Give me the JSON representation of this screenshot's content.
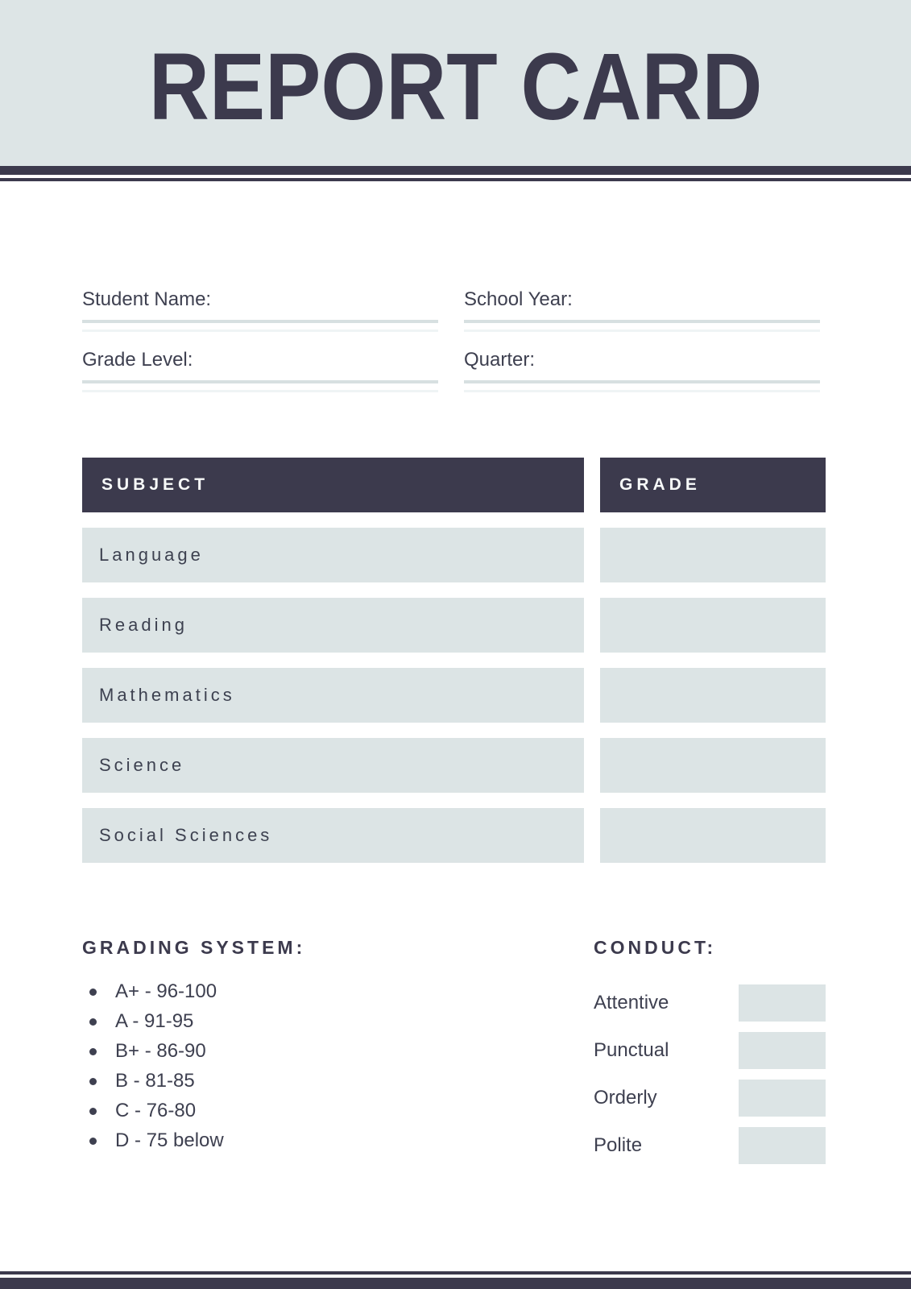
{
  "page": {
    "title": "REPORT CARD"
  },
  "colors": {
    "dark_navy": "#3c3a4d",
    "header_background": "#dde5e6",
    "cell_background": "#dce4e5",
    "underline": "#d7e0e1"
  },
  "fields": [
    {
      "label": "Student Name:",
      "value": ""
    },
    {
      "label": "School Year:",
      "value": ""
    },
    {
      "label": "Grade Level:",
      "value": ""
    },
    {
      "label": "Quarter:",
      "value": ""
    }
  ],
  "table": {
    "subject_header": "SUBJECT",
    "grade_header": "GRADE",
    "rows": [
      {
        "subject": "Language",
        "grade": ""
      },
      {
        "subject": "Reading",
        "grade": ""
      },
      {
        "subject": "Mathematics",
        "grade": ""
      },
      {
        "subject": "Science",
        "grade": ""
      },
      {
        "subject": "Social Sciences",
        "grade": ""
      }
    ]
  },
  "grading_system": {
    "heading": "GRADING SYSTEM:",
    "items": [
      "A+ - 96-100",
      "A - 91-95",
      "B+ - 86-90",
      "B - 81-85",
      "C - 76-80",
      "D - 75 below"
    ]
  },
  "conduct": {
    "heading": "CONDUCT:",
    "items": [
      "Attentive",
      "Punctual",
      "Orderly",
      "Polite"
    ]
  }
}
